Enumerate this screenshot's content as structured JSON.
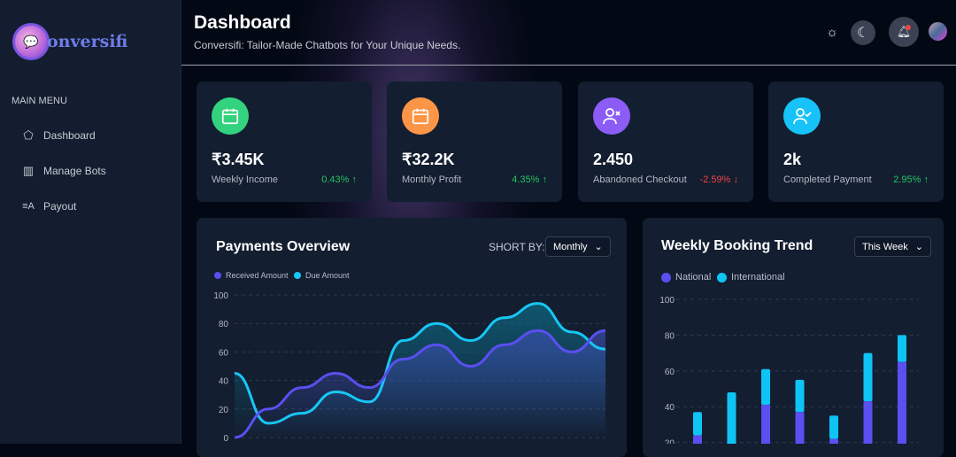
{
  "brand": {
    "name": "onversifi",
    "mark": "C"
  },
  "sidebar": {
    "menu_title": "MAIN MENU",
    "items": [
      {
        "label": "Dashboard",
        "icon": "home-icon"
      },
      {
        "label": "Manage Bots",
        "icon": "bots-icon"
      },
      {
        "label": "Payout",
        "icon": "payout-icon"
      }
    ]
  },
  "header": {
    "title": "Dashboard",
    "subtitle": "Conversifi: Tailor-Made Chatbots for Your Unique Needs.",
    "has_notification": true
  },
  "colors": {
    "green": "#2fd17a",
    "orange": "#fb923c",
    "purple": "#8b5cf6",
    "cyan": "#0ec4f5",
    "received": "#5a4ff0",
    "due": "#17c6f5",
    "up": "#22c55e",
    "down": "#ef4444"
  },
  "cards": [
    {
      "value": "₹3.45K",
      "label": "Weekly Income",
      "change": "0.43% ↑",
      "trend": "up",
      "icon": "calendar-icon",
      "color": "#32d27e"
    },
    {
      "value": "₹32.2K",
      "label": "Monthly Profit",
      "change": "4.35% ↑",
      "trend": "up",
      "icon": "calendar-icon",
      "color": "#fd9547"
    },
    {
      "value": "2.450",
      "label": "Abandoned Checkout",
      "change": "-2.59% ↓",
      "trend": "down",
      "icon": "user-x-icon",
      "color": "#8b5cf6"
    },
    {
      "value": "2k",
      "label": "Completed Payment",
      "change": "2.95% ↑",
      "trend": "up",
      "icon": "user-check-icon",
      "color": "#16c2f7"
    }
  ],
  "payments": {
    "title": "Payments Overview",
    "sort_label": "SHORT BY:",
    "sort_value": "Monthly"
  },
  "booking": {
    "title": "Weekly Booking Trend",
    "filter_value": "This Week"
  },
  "chart_data": [
    {
      "type": "area",
      "legend": [
        "Received Amount",
        "Due Amount"
      ],
      "ylim": [
        0,
        100
      ],
      "yticks": [
        0,
        20,
        40,
        60,
        80,
        100
      ],
      "grid": true,
      "legend_placement": "top-left",
      "series": [
        {
          "name": "Received Amount",
          "values": [
            0,
            20,
            35,
            45,
            35,
            55,
            65,
            50,
            65,
            75,
            60,
            75
          ]
        },
        {
          "name": "Due Amount",
          "values": [
            45,
            10,
            17,
            32,
            25,
            68,
            80,
            68,
            84,
            94,
            74,
            62
          ]
        }
      ]
    },
    {
      "type": "bar",
      "stacked": true,
      "legend": [
        "National",
        "International"
      ],
      "ylim": [
        0,
        100
      ],
      "yticks": [
        20,
        40,
        60,
        80,
        100
      ],
      "grid": true,
      "legend_placement": "top-left",
      "series": [
        {
          "name": "National",
          "values": [
            24,
            12,
            41,
            37,
            22,
            43,
            65
          ]
        },
        {
          "name": "International",
          "values": [
            13,
            36,
            20,
            18,
            13,
            27,
            15
          ]
        }
      ]
    }
  ]
}
